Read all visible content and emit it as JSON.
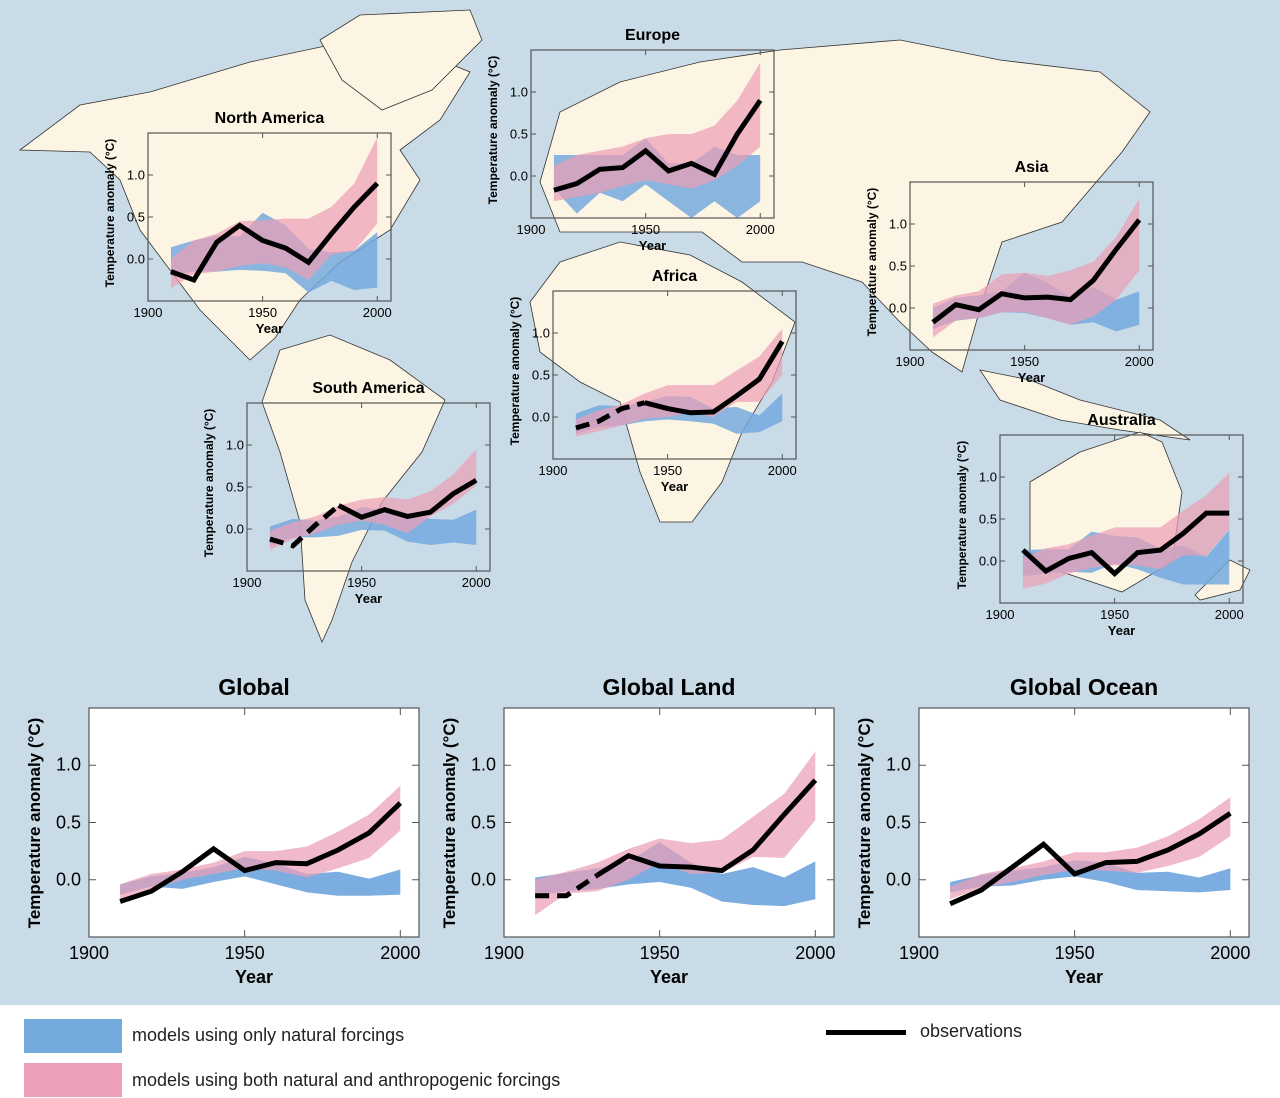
{
  "colors": {
    "ocean": "#c9dbe7",
    "land": "#fdf5e4",
    "natural": "#74a9de",
    "anthropogenic": "#ec9fb6",
    "observations": "#000000"
  },
  "legend": {
    "natural_label": "models using only natural forcings",
    "anthropogenic_label": "models using both natural and anthropogenic forcings",
    "observations_label": "observations"
  },
  "chart_data": [
    {
      "type": "area",
      "title": "North America",
      "xlabel": "Year",
      "ylabel": "Temperature anomaly (°C)",
      "xlim": [
        1900,
        2006
      ],
      "ylim": [
        -0.5,
        1.5
      ],
      "xticks": [
        "1900",
        "1950",
        "2000"
      ],
      "yticks": [
        "0.0",
        "0.5",
        "1.0"
      ],
      "years": [
        1910,
        1920,
        1930,
        1940,
        1950,
        1960,
        1970,
        1980,
        1990,
        2000
      ],
      "observations": [
        -0.15,
        -0.25,
        0.2,
        0.4,
        0.22,
        0.13,
        -0.04,
        0.3,
        0.62,
        0.9
      ],
      "natural": {
        "lo": [
          -0.2,
          -0.15,
          -0.15,
          -0.13,
          -0.14,
          -0.17,
          -0.4,
          -0.26,
          -0.37,
          -0.34
        ],
        "hi": [
          0.14,
          0.22,
          0.28,
          0.27,
          0.55,
          0.4,
          0.12,
          0.08,
          0.1,
          0.32
        ]
      },
      "natural_and_anthropogenic": {
        "lo": [
          -0.35,
          -0.18,
          -0.15,
          -0.08,
          -0.05,
          -0.1,
          -0.25,
          0.05,
          0.1,
          0.42
        ],
        "hi": [
          0.0,
          0.22,
          0.3,
          0.45,
          0.46,
          0.48,
          0.48,
          0.62,
          0.9,
          1.45
        ]
      }
    },
    {
      "type": "area",
      "title": "Europe",
      "xlabel": "Year",
      "ylabel": "Temperature anomaly (°C)",
      "xlim": [
        1900,
        2006
      ],
      "ylim": [
        -0.5,
        1.5
      ],
      "xticks": [
        "1900",
        "1950",
        "2000"
      ],
      "yticks": [
        "0.0",
        "0.5",
        "1.0"
      ],
      "years": [
        1910,
        1920,
        1930,
        1940,
        1950,
        1960,
        1970,
        1980,
        1990,
        2000
      ],
      "observations": [
        -0.17,
        -0.09,
        0.08,
        0.1,
        0.3,
        0.06,
        0.15,
        0.02,
        0.5,
        0.9
      ],
      "natural": {
        "lo": [
          -0.15,
          -0.45,
          -0.2,
          -0.3,
          -0.1,
          -0.3,
          -0.5,
          -0.3,
          -0.5,
          -0.3
        ],
        "hi": [
          0.25,
          0.25,
          0.25,
          0.25,
          0.45,
          0.15,
          0.15,
          0.35,
          0.25,
          0.25
        ]
      },
      "natural_and_anthropogenic": {
        "lo": [
          -0.3,
          -0.25,
          -0.2,
          -0.12,
          -0.05,
          -0.1,
          -0.15,
          -0.05,
          0.12,
          0.35
        ],
        "hi": [
          0.12,
          0.25,
          0.3,
          0.35,
          0.45,
          0.5,
          0.5,
          0.6,
          0.9,
          1.35
        ]
      }
    },
    {
      "type": "area",
      "title": "Asia",
      "xlabel": "Year",
      "ylabel": "Temperature anomaly (°C)",
      "xlim": [
        1900,
        2006
      ],
      "ylim": [
        -0.5,
        1.5
      ],
      "xticks": [
        "1900",
        "1950",
        "2000"
      ],
      "yticks": [
        "0.0",
        "0.5",
        "1.0"
      ],
      "years": [
        1910,
        1920,
        1930,
        1940,
        1950,
        1960,
        1970,
        1980,
        1990,
        2000
      ],
      "observations": [
        -0.17,
        0.04,
        -0.02,
        0.17,
        0.12,
        0.13,
        0.1,
        0.33,
        0.7,
        1.05
      ],
      "natural": {
        "lo": [
          -0.25,
          -0.15,
          -0.12,
          -0.05,
          -0.06,
          -0.12,
          -0.2,
          -0.17,
          -0.28,
          -0.2
        ],
        "hi": [
          0.0,
          0.12,
          0.15,
          0.2,
          0.42,
          0.3,
          0.12,
          0.25,
          0.1,
          0.2
        ]
      },
      "natural_and_anthropogenic": {
        "lo": [
          -0.35,
          -0.15,
          -0.12,
          -0.05,
          -0.05,
          -0.12,
          -0.2,
          -0.1,
          0.1,
          0.45
        ],
        "hi": [
          0.05,
          0.15,
          0.2,
          0.4,
          0.42,
          0.38,
          0.45,
          0.55,
          0.85,
          1.3
        ]
      }
    },
    {
      "type": "area",
      "title": "Africa",
      "xlabel": "Year",
      "ylabel": "Temperature anomaly (°C)",
      "xlim": [
        1900,
        2006
      ],
      "ylim": [
        -0.5,
        1.5
      ],
      "xticks": [
        "1900",
        "1950",
        "2000"
      ],
      "yticks": [
        "0.0",
        "0.5",
        "1.0"
      ],
      "years": [
        1910,
        1920,
        1930,
        1940,
        1950,
        1960,
        1970,
        1980,
        1990,
        2000
      ],
      "observations": [
        -0.13,
        -0.05,
        0.1,
        0.17,
        0.1,
        0.05,
        0.06,
        0.25,
        0.45,
        0.9
      ],
      "observations_incomplete_until": 1940,
      "natural": {
        "lo": [
          -0.2,
          -0.12,
          -0.1,
          -0.05,
          -0.03,
          -0.05,
          -0.08,
          -0.2,
          -0.18,
          -0.05
        ],
        "hi": [
          0.04,
          0.14,
          0.13,
          0.18,
          0.25,
          0.24,
          0.1,
          0.12,
          0.02,
          0.28
        ]
      },
      "natural_and_anthropogenic": {
        "lo": [
          -0.23,
          -0.17,
          -0.1,
          -0.02,
          0.0,
          0.05,
          0.0,
          0.18,
          0.18,
          0.5
        ],
        "hi": [
          -0.03,
          0.08,
          0.15,
          0.28,
          0.38,
          0.38,
          0.38,
          0.55,
          0.72,
          1.05
        ]
      }
    },
    {
      "type": "area",
      "title": "South America",
      "xlabel": "Year",
      "ylabel": "Temperature anomaly (°C)",
      "xlim": [
        1900,
        2006
      ],
      "ylim": [
        -0.5,
        1.5
      ],
      "xticks": [
        "1900",
        "1950",
        "2000"
      ],
      "yticks": [
        "0.0",
        "0.5",
        "1.0"
      ],
      "years": [
        1910,
        1920,
        1930,
        1940,
        1950,
        1960,
        1970,
        1980,
        1990,
        2000
      ],
      "observations": [
        -0.12,
        -0.2,
        0.05,
        0.28,
        0.14,
        0.23,
        0.15,
        0.2,
        0.42,
        0.58
      ],
      "observations_incomplete_until": 1940,
      "natural": {
        "lo": [
          -0.2,
          -0.1,
          -0.1,
          -0.08,
          -0.01,
          -0.02,
          -0.15,
          -0.19,
          -0.16,
          -0.19
        ],
        "hi": [
          0.03,
          0.12,
          0.1,
          0.15,
          0.26,
          0.22,
          0.18,
          0.12,
          0.11,
          0.23
        ]
      },
      "natural_and_anthropogenic": {
        "lo": [
          -0.25,
          -0.12,
          -0.05,
          0.05,
          0.1,
          0.05,
          -0.05,
          0.15,
          0.3,
          0.52
        ],
        "hi": [
          -0.02,
          0.08,
          0.15,
          0.28,
          0.35,
          0.38,
          0.35,
          0.45,
          0.65,
          0.95
        ]
      }
    },
    {
      "type": "area",
      "title": "Australia",
      "xlabel": "Year",
      "ylabel": "Temperature anomaly (°C)",
      "xlim": [
        1900,
        2006
      ],
      "ylim": [
        -0.5,
        1.5
      ],
      "xticks": [
        "1900",
        "1950",
        "2000"
      ],
      "yticks": [
        "0.0",
        "0.5",
        "1.0"
      ],
      "years": [
        1910,
        1920,
        1930,
        1940,
        1950,
        1960,
        1970,
        1980,
        1990,
        2000
      ],
      "observations": [
        0.13,
        -0.12,
        0.03,
        0.1,
        -0.15,
        0.1,
        0.13,
        0.33,
        0.57,
        0.57
      ],
      "natural": {
        "lo": [
          -0.18,
          -0.15,
          -0.13,
          -0.14,
          -0.03,
          -0.1,
          -0.2,
          -0.28,
          -0.28,
          -0.28
        ],
        "hi": [
          0.13,
          0.14,
          0.14,
          0.35,
          0.3,
          0.28,
          0.15,
          0.18,
          0.05,
          0.37
        ]
      },
      "natural_and_anthropogenic": {
        "lo": [
          -0.33,
          -0.27,
          -0.15,
          -0.08,
          -0.05,
          -0.05,
          -0.1,
          0.07,
          0.06,
          0.38
        ],
        "hi": [
          0.04,
          0.15,
          0.2,
          0.3,
          0.4,
          0.4,
          0.4,
          0.6,
          0.78,
          1.05
        ]
      }
    },
    {
      "type": "area",
      "title": "Global",
      "xlabel": "Year",
      "ylabel": "Temperature anomaly (°C)",
      "xlim": [
        1900,
        2006
      ],
      "ylim": [
        -0.5,
        1.5
      ],
      "xticks": [
        "1900",
        "1950",
        "2000"
      ],
      "yticks": [
        "0.0",
        "0.5",
        "1.0"
      ],
      "years": [
        1910,
        1920,
        1930,
        1940,
        1950,
        1960,
        1970,
        1980,
        1990,
        2000
      ],
      "observations": [
        -0.19,
        -0.1,
        0.07,
        0.27,
        0.08,
        0.15,
        0.14,
        0.26,
        0.41,
        0.67
      ],
      "natural": {
        "lo": [
          -0.13,
          -0.06,
          -0.08,
          -0.02,
          0.03,
          -0.04,
          -0.11,
          -0.14,
          -0.14,
          -0.13
        ],
        "hi": [
          -0.04,
          0.03,
          0.06,
          0.11,
          0.2,
          0.14,
          0.05,
          0.07,
          0.01,
          0.09
        ]
      },
      "natural_and_anthropogenic": {
        "lo": [
          -0.17,
          -0.08,
          0.0,
          0.05,
          0.1,
          0.08,
          0.02,
          0.1,
          0.19,
          0.43
        ],
        "hi": [
          -0.04,
          0.05,
          0.09,
          0.15,
          0.25,
          0.25,
          0.29,
          0.42,
          0.57,
          0.82
        ]
      }
    },
    {
      "type": "area",
      "title": "Global Land",
      "xlabel": "Year",
      "ylabel": "Temperature anomaly (°C)",
      "xlim": [
        1900,
        2006
      ],
      "ylim": [
        -0.5,
        1.5
      ],
      "xticks": [
        "1900",
        "1950",
        "2000"
      ],
      "yticks": [
        "0.0",
        "0.5",
        "1.0"
      ],
      "years": [
        1910,
        1920,
        1930,
        1940,
        1950,
        1960,
        1970,
        1980,
        1990,
        2000
      ],
      "observations": [
        -0.14,
        -0.14,
        0.04,
        0.21,
        0.12,
        0.11,
        0.08,
        0.26,
        0.57,
        0.87
      ],
      "observations_incomplete_until": 1930,
      "natural": {
        "lo": [
          -0.14,
          -0.1,
          -0.08,
          -0.04,
          -0.02,
          -0.07,
          -0.19,
          -0.22,
          -0.23,
          -0.17
        ],
        "hi": [
          0.02,
          0.06,
          0.1,
          0.16,
          0.33,
          0.15,
          0.05,
          0.11,
          0.02,
          0.16
        ]
      },
      "natural_and_anthropogenic": {
        "lo": [
          -0.31,
          -0.12,
          -0.1,
          0.0,
          0.15,
          0.05,
          0.06,
          0.2,
          0.19,
          0.52
        ],
        "hi": [
          0.0,
          0.07,
          0.15,
          0.27,
          0.36,
          0.32,
          0.35,
          0.55,
          0.75,
          1.12
        ]
      }
    },
    {
      "type": "area",
      "title": "Global Ocean",
      "xlabel": "Year",
      "ylabel": "Temperature anomaly (°C)",
      "xlim": [
        1900,
        2006
      ],
      "ylim": [
        -0.5,
        1.5
      ],
      "xticks": [
        "1900",
        "1950",
        "2000"
      ],
      "yticks": [
        "0.0",
        "0.5",
        "1.0"
      ],
      "years": [
        1910,
        1920,
        1930,
        1940,
        1950,
        1960,
        1970,
        1980,
        1990,
        2000
      ],
      "observations": [
        -0.21,
        -0.09,
        0.11,
        0.31,
        0.05,
        0.15,
        0.16,
        0.26,
        0.4,
        0.58
      ],
      "natural": {
        "lo": [
          -0.11,
          -0.06,
          -0.05,
          0.0,
          0.03,
          -0.02,
          -0.09,
          -0.1,
          -0.11,
          -0.09
        ],
        "hi": [
          -0.02,
          0.04,
          0.08,
          0.11,
          0.17,
          0.15,
          0.06,
          0.07,
          0.02,
          0.1
        ]
      },
      "natural_and_anthropogenic": {
        "lo": [
          -0.17,
          -0.07,
          -0.02,
          0.04,
          0.09,
          0.08,
          0.06,
          0.12,
          0.2,
          0.38
        ],
        "hi": [
          -0.06,
          0.05,
          0.1,
          0.16,
          0.24,
          0.24,
          0.28,
          0.38,
          0.53,
          0.72
        ]
      }
    }
  ]
}
